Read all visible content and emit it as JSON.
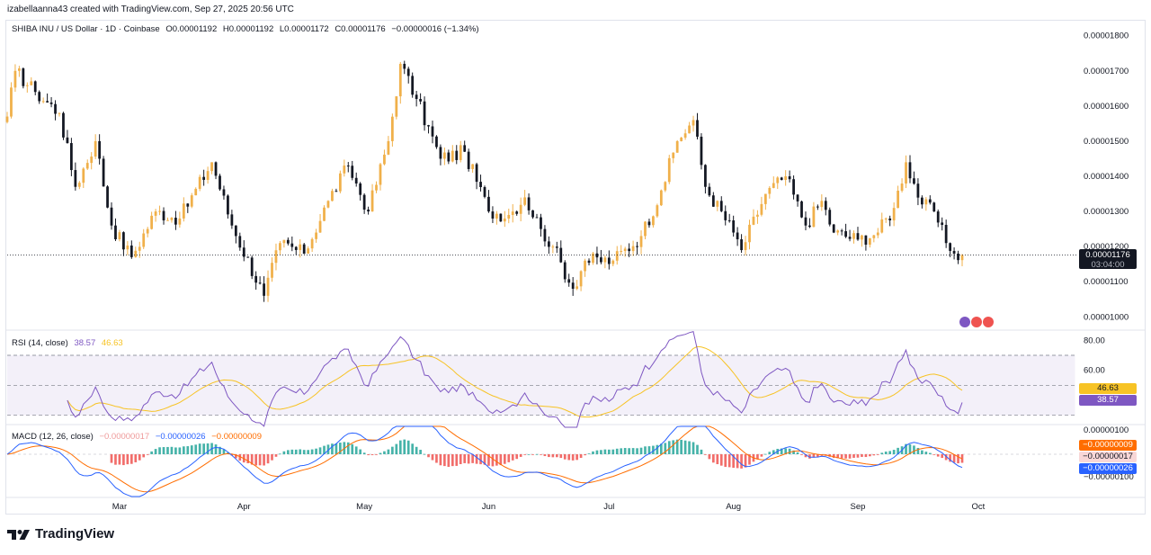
{
  "attribution": "izabellaanna43 created with TradingView.com, Sep 27, 2025 20:56 UTC",
  "header": {
    "symbol": "SHIBA INU / US Dollar · 1D · Coinbase",
    "open": "O0.00001192",
    "high": "H0.00001192",
    "low": "L0.00001172",
    "close": "C0.00001176",
    "change": "−0.00000016 (−1.34%)"
  },
  "price_box": {
    "price": "0.00001176",
    "countdown": "03:04:00"
  },
  "rsi_legend": {
    "label": "RSI (14, close)",
    "rsi": "38.57",
    "ma": "46.63"
  },
  "rsi_badges": {
    "ma": "46.63",
    "rsi": "38.57"
  },
  "macd_legend": {
    "label": "MACD (12, 26, close)",
    "hist": "−0.00000017",
    "macd": "−0.00000026",
    "signal": "−0.00000009"
  },
  "macd_badges": {
    "signal": "−0.00000009",
    "hist": "−0.00000017",
    "macd": "−0.00000026"
  },
  "brand": {
    "name": "TradingView"
  },
  "colors": {
    "up": "#f0b04a",
    "down": "#131722",
    "rsi_line": "#7e57c2",
    "rsi_ma": "#f7c325",
    "macd_line": "#2962ff",
    "signal_line": "#ff6d00",
    "hist_pos": "#26a69a",
    "hist_neg": "#ef5350"
  },
  "chart_data": [
    {
      "type": "candlestick",
      "title": "SHIBA INU / US Dollar · 1D · Coinbase",
      "x_ticks": [
        "Mar",
        "Apr",
        "May",
        "Jun",
        "Jul",
        "Aug",
        "Sep",
        "Oct"
      ],
      "y_ticks": [
        "0.00001800",
        "0.00001700",
        "0.00001600",
        "0.00001500",
        "0.00001400",
        "0.00001300",
        "0.00001200",
        "0.00001100",
        "0.00001000"
      ],
      "ylim": [
        9.7e-06,
        1.83e-05
      ],
      "last_price": 1.176e-05,
      "path_keypoints": [
        {
          "date": "2025-02-01",
          "price": 1.57e-05
        },
        {
          "date": "2025-02-03",
          "price": 1.7e-05
        },
        {
          "date": "2025-02-08",
          "price": 1.64e-05
        },
        {
          "date": "2025-02-14",
          "price": 1.58e-05
        },
        {
          "date": "2025-02-18",
          "price": 1.37e-05
        },
        {
          "date": "2025-02-23",
          "price": 1.5e-05
        },
        {
          "date": "2025-02-27",
          "price": 1.26e-05
        },
        {
          "date": "2025-03-04",
          "price": 1.17e-05
        },
        {
          "date": "2025-03-10",
          "price": 1.3e-05
        },
        {
          "date": "2025-03-16",
          "price": 1.28e-05
        },
        {
          "date": "2025-03-24",
          "price": 1.44e-05
        },
        {
          "date": "2025-03-29",
          "price": 1.26e-05
        },
        {
          "date": "2025-04-06",
          "price": 1.06e-05
        },
        {
          "date": "2025-04-10",
          "price": 1.21e-05
        },
        {
          "date": "2025-04-16",
          "price": 1.18e-05
        },
        {
          "date": "2025-04-22",
          "price": 1.33e-05
        },
        {
          "date": "2025-04-27",
          "price": 1.43e-05
        },
        {
          "date": "2025-05-02",
          "price": 1.3e-05
        },
        {
          "date": "2025-05-07",
          "price": 1.5e-05
        },
        {
          "date": "2025-05-10",
          "price": 1.72e-05
        },
        {
          "date": "2025-05-14",
          "price": 1.62e-05
        },
        {
          "date": "2025-05-20",
          "price": 1.45e-05
        },
        {
          "date": "2025-05-26",
          "price": 1.47e-05
        },
        {
          "date": "2025-06-01",
          "price": 1.3e-05
        },
        {
          "date": "2025-06-06",
          "price": 1.29e-05
        },
        {
          "date": "2025-06-10",
          "price": 1.34e-05
        },
        {
          "date": "2025-06-14",
          "price": 1.25e-05
        },
        {
          "date": "2025-06-17",
          "price": 1.2e-05
        },
        {
          "date": "2025-06-22",
          "price": 1.08e-05
        },
        {
          "date": "2025-06-25",
          "price": 1.16e-05
        },
        {
          "date": "2025-07-02",
          "price": 1.16e-05
        },
        {
          "date": "2025-07-09",
          "price": 1.23e-05
        },
        {
          "date": "2025-07-14",
          "price": 1.36e-05
        },
        {
          "date": "2025-07-18",
          "price": 1.5e-05
        },
        {
          "date": "2025-07-22",
          "price": 1.56e-05
        },
        {
          "date": "2025-07-25",
          "price": 1.37e-05
        },
        {
          "date": "2025-08-01",
          "price": 1.24e-05
        },
        {
          "date": "2025-08-03",
          "price": 1.19e-05
        },
        {
          "date": "2025-08-09",
          "price": 1.35e-05
        },
        {
          "date": "2025-08-14",
          "price": 1.4e-05
        },
        {
          "date": "2025-08-19",
          "price": 1.26e-05
        },
        {
          "date": "2025-08-23",
          "price": 1.33e-05
        },
        {
          "date": "2025-08-26",
          "price": 1.24e-05
        },
        {
          "date": "2025-09-01",
          "price": 1.22e-05
        },
        {
          "date": "2025-09-06",
          "price": 1.24e-05
        },
        {
          "date": "2025-09-10",
          "price": 1.31e-05
        },
        {
          "date": "2025-09-13",
          "price": 1.44e-05
        },
        {
          "date": "2025-09-17",
          "price": 1.32e-05
        },
        {
          "date": "2025-09-20",
          "price": 1.3e-05
        },
        {
          "date": "2025-09-23",
          "price": 1.21e-05
        },
        {
          "date": "2025-09-25",
          "price": 1.18e-05
        },
        {
          "date": "2025-09-27",
          "price": 1.176e-05
        }
      ]
    },
    {
      "type": "line",
      "title": "RSI (14, close)",
      "series": [
        {
          "name": "RSI",
          "last": 38.57
        },
        {
          "name": "RSI-based MA",
          "last": 46.63
        }
      ],
      "y_ticks": [
        "80.00",
        "60.00"
      ],
      "ylim": [
        25,
        85
      ],
      "bands": [
        70,
        50,
        30
      ]
    },
    {
      "type": "bar",
      "title": "MACD (12, 26, close)",
      "series": [
        {
          "name": "Histogram",
          "last": -1.7e-07
        },
        {
          "name": "MACD",
          "last": -2.6e-07
        },
        {
          "name": "Signal",
          "last": -9e-08
        }
      ],
      "y_ticks": [
        "0.00000100",
        "−0.00000100"
      ]
    }
  ]
}
